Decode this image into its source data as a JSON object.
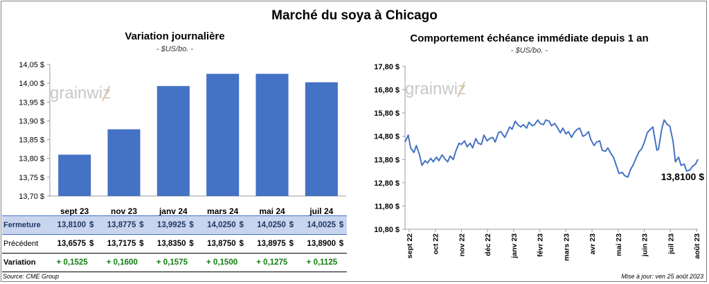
{
  "title": "Marché du soya à Chicago",
  "colors": {
    "bar": "#4472c4",
    "line": "#4472c4",
    "positive": "#107c10"
  },
  "left_chart": {
    "title": "Variation journalière",
    "unit": "- $US/bo. -",
    "watermark": "grainwiz",
    "chart_data": {
      "type": "bar",
      "categories": [
        "sept 23",
        "nov 23",
        "janv 24",
        "mars 24",
        "mai 24",
        "juil 24"
      ],
      "values": [
        13.81,
        13.8775,
        13.9925,
        14.025,
        14.025,
        14.0025
      ],
      "ylim": [
        13.7,
        14.05
      ],
      "yticks": [
        13.7,
        13.75,
        13.8,
        13.85,
        13.9,
        13.95,
        14.0,
        14.05
      ],
      "ytick_labels": [
        "13,70 $",
        "13,75 $",
        "13,80 $",
        "13,85 $",
        "13,90 $",
        "13,95 $",
        "14,00 $",
        "14,05 $"
      ],
      "grid": false
    }
  },
  "table": {
    "rows": [
      {
        "label": "Fermeture",
        "cells": [
          [
            "13,8100",
            "$"
          ],
          [
            "13,8775",
            "$"
          ],
          [
            "13,9925",
            "$"
          ],
          [
            "14,0250",
            "$"
          ],
          [
            "14,0250",
            "$"
          ],
          [
            "14,0025",
            "$"
          ]
        ]
      },
      {
        "label": "Précédent",
        "cells": [
          [
            "13,6575",
            "$"
          ],
          [
            "13,7175",
            "$"
          ],
          [
            "13,8350",
            "$"
          ],
          [
            "13,8750",
            "$"
          ],
          [
            "13,8975",
            "$"
          ],
          [
            "13,8900",
            "$"
          ]
        ]
      },
      {
        "label": "Variation",
        "cells": [
          [
            "+ 0,1525",
            ""
          ],
          [
            "+ 0,1600",
            ""
          ],
          [
            "+ 0,1575",
            ""
          ],
          [
            "+ 0,1500",
            ""
          ],
          [
            "+ 0,1275",
            ""
          ],
          [
            "+ 0,1125",
            ""
          ]
        ]
      }
    ]
  },
  "right_chart": {
    "title": "Comportement  échéance immédiate depuis 1 an",
    "unit": "- $US/bo. -",
    "watermark": "grainwiz",
    "last_label": "13,8100 $",
    "chart_data": {
      "type": "line",
      "ylim": [
        10.8,
        17.8
      ],
      "yticks": [
        10.8,
        11.8,
        12.8,
        13.8,
        14.8,
        15.8,
        16.8,
        17.8
      ],
      "ytick_labels": [
        "10,80 $",
        "11,80 $",
        "12,80 $",
        "13,80 $",
        "14,80 $",
        "15,80 $",
        "16,80 $",
        "17,80 $"
      ],
      "xtick_labels": [
        "sept 22",
        "oct 22",
        "nov 22",
        "déc 22",
        "janv 23",
        "févr 23",
        "mars 23",
        "avr 23",
        "mai 23",
        "juin 23",
        "juil 23",
        "août 23"
      ],
      "grid": false,
      "series": [
        {
          "x": [
            "2022-08-26",
            "2022-08-30",
            "2022-09-02",
            "2022-09-06",
            "2022-09-09",
            "2022-09-13",
            "2022-09-16",
            "2022-09-20",
            "2022-09-23",
            "2022-09-27",
            "2022-09-30",
            "2022-10-04",
            "2022-10-07",
            "2022-10-11",
            "2022-10-14",
            "2022-10-18",
            "2022-10-21",
            "2022-10-25",
            "2022-10-28",
            "2022-11-01",
            "2022-11-04",
            "2022-11-08",
            "2022-11-11",
            "2022-11-15",
            "2022-11-18",
            "2022-11-22",
            "2022-11-25",
            "2022-11-29",
            "2022-12-02",
            "2022-12-06",
            "2022-12-09",
            "2022-12-13",
            "2022-12-16",
            "2022-12-20",
            "2022-12-23",
            "2022-12-28",
            "2023-01-03",
            "2023-01-06",
            "2023-01-10",
            "2023-01-13",
            "2023-01-17",
            "2023-01-20",
            "2023-01-24",
            "2023-01-27",
            "2023-01-31",
            "2023-02-03",
            "2023-02-07",
            "2023-02-10",
            "2023-02-14",
            "2023-02-17",
            "2023-02-21",
            "2023-02-24",
            "2023-02-28",
            "2023-03-03",
            "2023-03-07",
            "2023-03-10",
            "2023-03-14",
            "2023-03-17",
            "2023-03-21",
            "2023-03-24",
            "2023-03-28",
            "2023-03-31",
            "2023-04-04",
            "2023-04-07",
            "2023-04-11",
            "2023-04-14",
            "2023-04-18",
            "2023-04-21",
            "2023-04-25",
            "2023-04-28",
            "2023-05-02",
            "2023-05-05",
            "2023-05-09",
            "2023-05-12",
            "2023-05-16",
            "2023-05-19",
            "2023-05-23",
            "2023-05-26",
            "2023-05-30",
            "2023-06-02",
            "2023-06-06",
            "2023-06-09",
            "2023-06-13",
            "2023-06-16",
            "2023-06-20",
            "2023-06-23",
            "2023-06-27",
            "2023-06-30",
            "2023-07-05",
            "2023-07-07",
            "2023-07-11",
            "2023-07-14",
            "2023-07-18",
            "2023-07-21",
            "2023-07-25",
            "2023-07-28",
            "2023-08-01",
            "2023-08-04",
            "2023-08-08",
            "2023-08-11",
            "2023-08-15",
            "2023-08-18",
            "2023-08-22",
            "2023-08-25"
          ],
          "y": [
            14.55,
            14.85,
            14.3,
            14.1,
            14.4,
            14.0,
            13.55,
            13.75,
            13.65,
            13.85,
            13.7,
            13.9,
            13.75,
            14.0,
            13.85,
            13.7,
            13.95,
            13.8,
            14.15,
            14.5,
            14.45,
            14.6,
            14.35,
            14.5,
            14.3,
            14.7,
            14.5,
            14.45,
            14.85,
            14.6,
            14.7,
            14.75,
            14.55,
            14.95,
            15.0,
            14.75,
            15.2,
            15.1,
            15.45,
            15.3,
            15.2,
            15.3,
            15.15,
            15.4,
            15.25,
            15.3,
            15.5,
            15.35,
            15.3,
            15.5,
            15.45,
            15.25,
            15.35,
            15.2,
            14.95,
            15.15,
            14.9,
            15.0,
            14.75,
            14.95,
            15.1,
            15.15,
            14.8,
            14.85,
            15.0,
            14.65,
            14.4,
            14.55,
            14.6,
            14.2,
            14.15,
            14.3,
            14.05,
            13.9,
            13.5,
            13.2,
            13.25,
            13.1,
            13.05,
            13.35,
            13.6,
            13.85,
            14.15,
            14.25,
            14.6,
            14.95,
            15.1,
            15.2,
            14.2,
            14.25,
            15.1,
            15.5,
            15.3,
            15.25,
            14.6,
            13.7,
            13.9,
            13.55,
            13.6,
            13.3,
            13.35,
            13.5,
            13.6,
            13.81
          ]
        }
      ]
    }
  },
  "footer": {
    "source": "Source: CME Group",
    "updated": "Mise à jour: ven 25 août 2023"
  }
}
